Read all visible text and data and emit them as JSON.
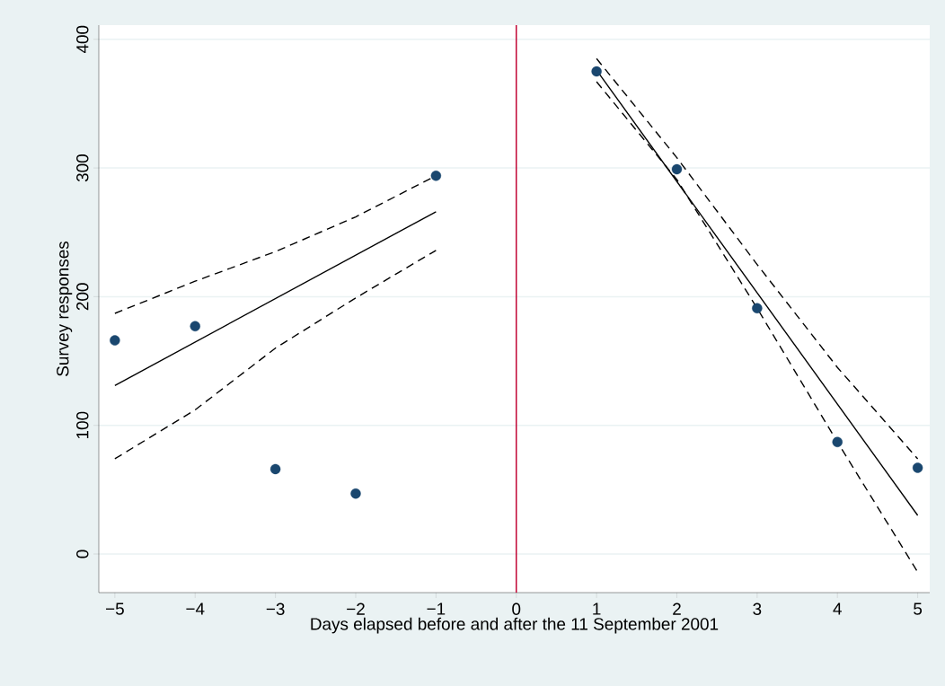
{
  "chart_data": {
    "type": "scatter",
    "xlabel": "Days elapsed before and after the 11 September 2001",
    "ylabel": "Survey responses",
    "xlim": [
      -5.2,
      5.15
    ],
    "ylim": [
      -30,
      411
    ],
    "xticks": [
      {
        "value": -5,
        "label": "−5"
      },
      {
        "value": -4,
        "label": "−4"
      },
      {
        "value": -3,
        "label": "−3"
      },
      {
        "value": -2,
        "label": "−2"
      },
      {
        "value": -1,
        "label": "−1"
      },
      0,
      1,
      2,
      3,
      4,
      5
    ],
    "yticks": [
      0,
      100,
      200,
      300,
      400
    ],
    "grid": "y",
    "series": [
      {
        "marker": "circle",
        "color": "#1a476f",
        "x": [
          -5,
          -4,
          -3,
          -2,
          -1,
          1,
          2,
          3,
          4,
          5
        ],
        "values": [
          166,
          177,
          66,
          47,
          294,
          375,
          299,
          191,
          87,
          67
        ]
      },
      {
        "type": "line",
        "line_style": "solid",
        "marker": "none",
        "color": "#000000",
        "x": [
          -5,
          -1
        ],
        "values": [
          131,
          266
        ]
      },
      {
        "type": "line",
        "line_style": "dashed",
        "marker": "none",
        "color": "#000000",
        "x": [
          -5,
          -4,
          -3,
          -2,
          -1
        ],
        "values": [
          187,
          212,
          235,
          262,
          294
        ]
      },
      {
        "type": "line",
        "line_style": "dashed",
        "marker": "none",
        "color": "#000000",
        "x": [
          -5,
          -4,
          -3,
          -2,
          -1
        ],
        "values": [
          74,
          112,
          160,
          199,
          236
        ]
      },
      {
        "type": "line",
        "line_style": "solid",
        "marker": "none",
        "color": "#000000",
        "x": [
          1,
          5
        ],
        "values": [
          376,
          30
        ]
      },
      {
        "type": "line",
        "line_style": "dashed",
        "marker": "none",
        "color": "#000000",
        "x": [
          1,
          2,
          3,
          4,
          5
        ],
        "values": [
          385,
          308,
          225,
          145,
          74
        ]
      },
      {
        "type": "line",
        "line_style": "dashed",
        "marker": "none",
        "color": "#000000",
        "x": [
          1,
          2,
          3,
          4,
          5
        ],
        "values": [
          367,
          291,
          191,
          87,
          -14
        ]
      }
    ],
    "ref_lines": [
      {
        "axis": "x",
        "value": 0,
        "color": "#c10534",
        "line_style": "solid"
      }
    ]
  }
}
